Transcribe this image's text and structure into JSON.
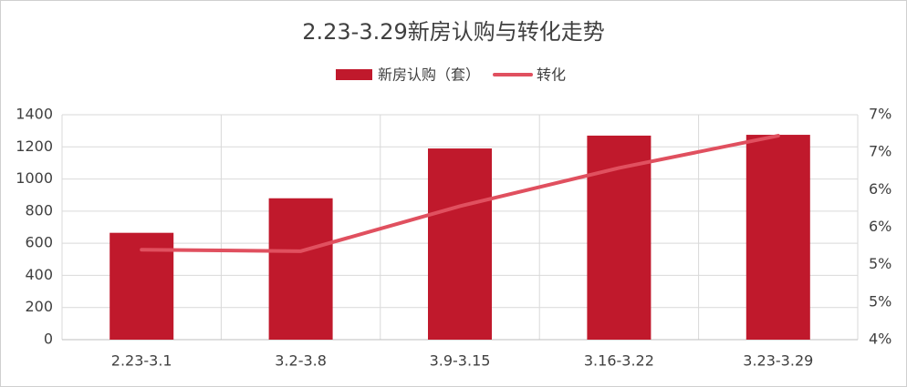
{
  "chart_data": {
    "type": "bar-line",
    "title": "2.23-3.29新房认购与转化走势",
    "categories": [
      "2.23-3.1",
      "3.2-3.8",
      "3.9-3.15",
      "3.16-3.22",
      "3.23-3.29"
    ],
    "series": [
      {
        "name": "新房认购（套）",
        "type": "bar",
        "color": "#c0192c",
        "values": [
          665,
          880,
          1190,
          1270,
          1275
        ]
      },
      {
        "name": "转化",
        "type": "line",
        "axis": "y2",
        "color": "#e0505f",
        "values": [
          5.2,
          5.18,
          5.78,
          6.29,
          6.72
        ]
      }
    ],
    "ylim": [
      0,
      1400
    ],
    "yticks": [
      0,
      200,
      400,
      600,
      800,
      1000,
      1200,
      1400
    ],
    "y2lim": [
      4,
      7
    ],
    "y2ticks": [
      {
        "value": 4,
        "label": "4%"
      },
      {
        "value": 4.5,
        "label": "5%"
      },
      {
        "value": 5,
        "label": "5%"
      },
      {
        "value": 5.5,
        "label": "6%"
      },
      {
        "value": 6,
        "label": "6%"
      },
      {
        "value": 6.5,
        "label": "7%"
      },
      {
        "value": 7,
        "label": "7%"
      }
    ],
    "grid": true,
    "legend": "top"
  }
}
